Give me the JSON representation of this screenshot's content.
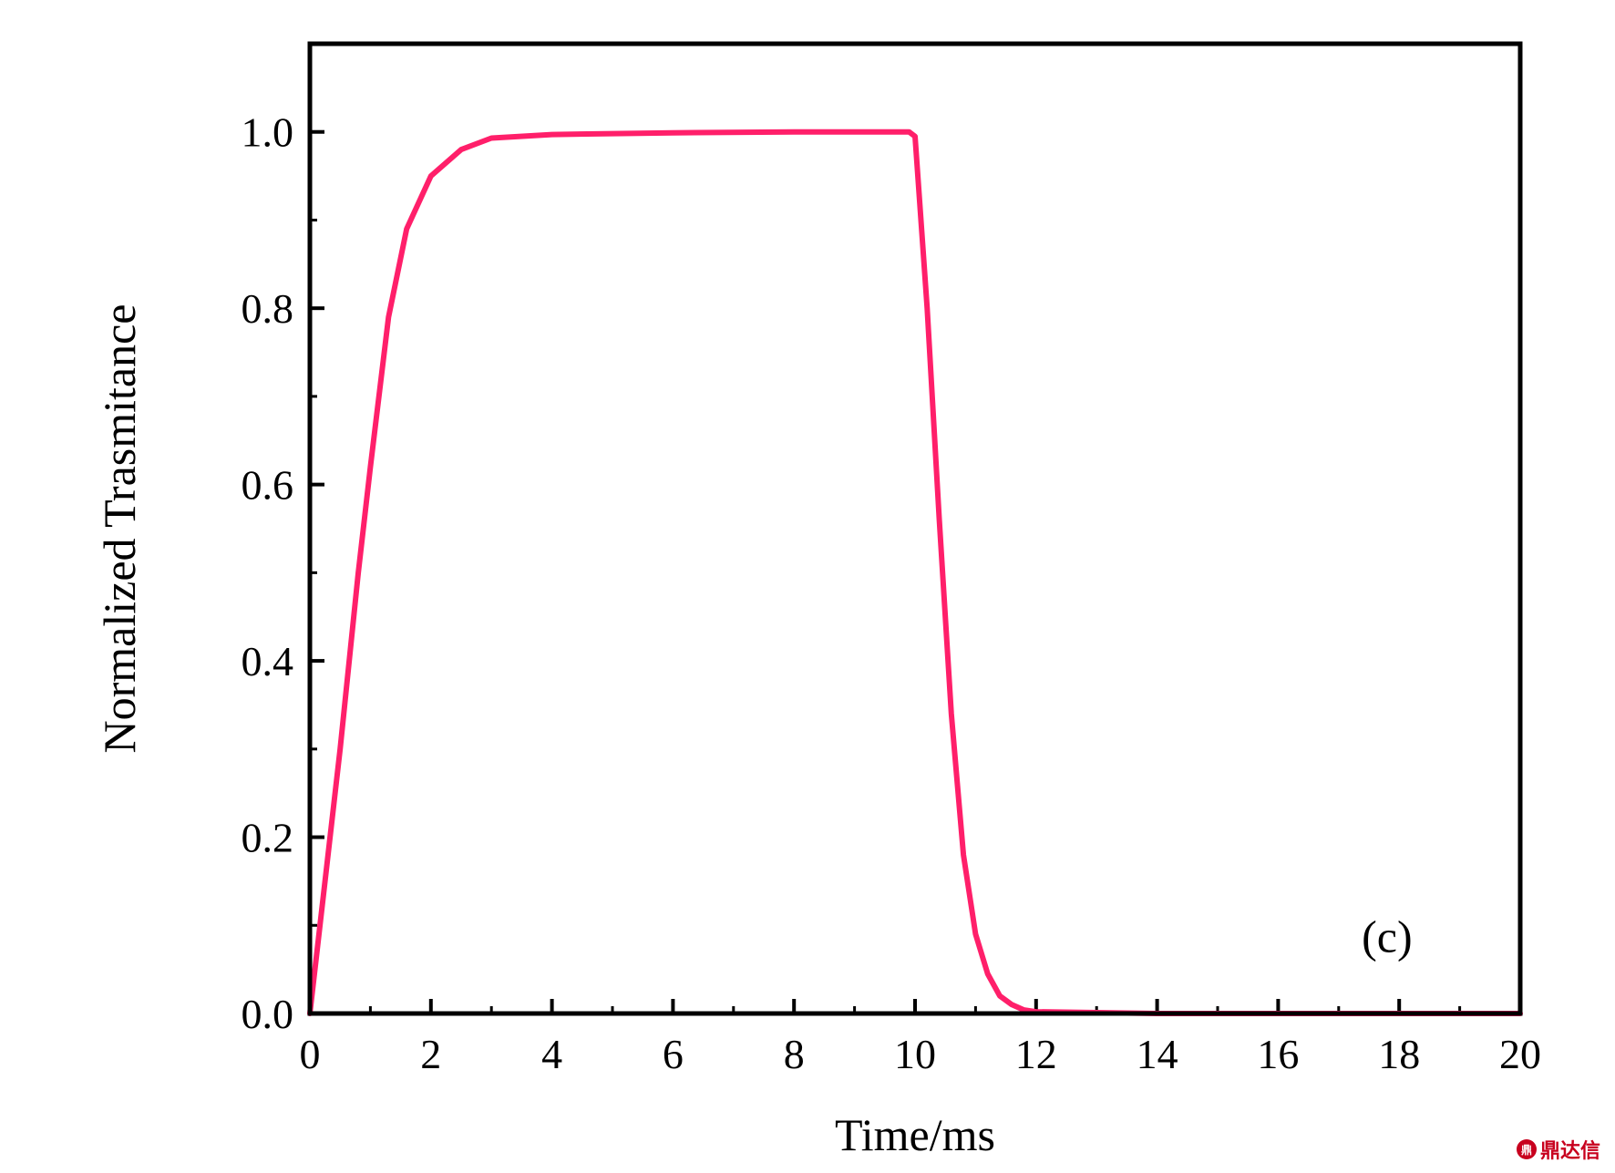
{
  "chart_data": {
    "type": "line",
    "title": "",
    "xlabel": "Time/ms",
    "ylabel": "Normalized Trasmitance",
    "xlim": [
      0,
      20
    ],
    "ylim": [
      0,
      1.1
    ],
    "x_ticks": [
      "0",
      "2",
      "4",
      "6",
      "8",
      "10",
      "12",
      "14",
      "16",
      "18",
      "20"
    ],
    "y_ticks": [
      "0.0",
      "0.2",
      "0.4",
      "0.6",
      "0.8",
      "1.0"
    ],
    "annotation": "(c)",
    "grid": false,
    "legend": "none",
    "series": [
      {
        "color": "#ff1f6a",
        "x": [
          0,
          0.2,
          0.5,
          0.8,
          1.0,
          1.3,
          1.6,
          2.0,
          2.5,
          3.0,
          4.0,
          6.0,
          8.0,
          9.9,
          10.0,
          10.2,
          10.4,
          10.6,
          10.8,
          11.0,
          11.2,
          11.4,
          11.6,
          11.8,
          12.0,
          13.0,
          14.0,
          16.0,
          18.0,
          20.0
        ],
        "y": [
          0.0,
          0.12,
          0.3,
          0.5,
          0.62,
          0.79,
          0.89,
          0.95,
          0.98,
          0.993,
          0.997,
          0.999,
          1.0,
          1.0,
          0.995,
          0.8,
          0.56,
          0.34,
          0.18,
          0.09,
          0.045,
          0.02,
          0.01,
          0.004,
          0.002,
          0.001,
          0.0,
          0.0,
          0.0,
          0.0
        ]
      }
    ]
  },
  "watermark": {
    "logo": "鼎",
    "text": "鼎达信"
  }
}
